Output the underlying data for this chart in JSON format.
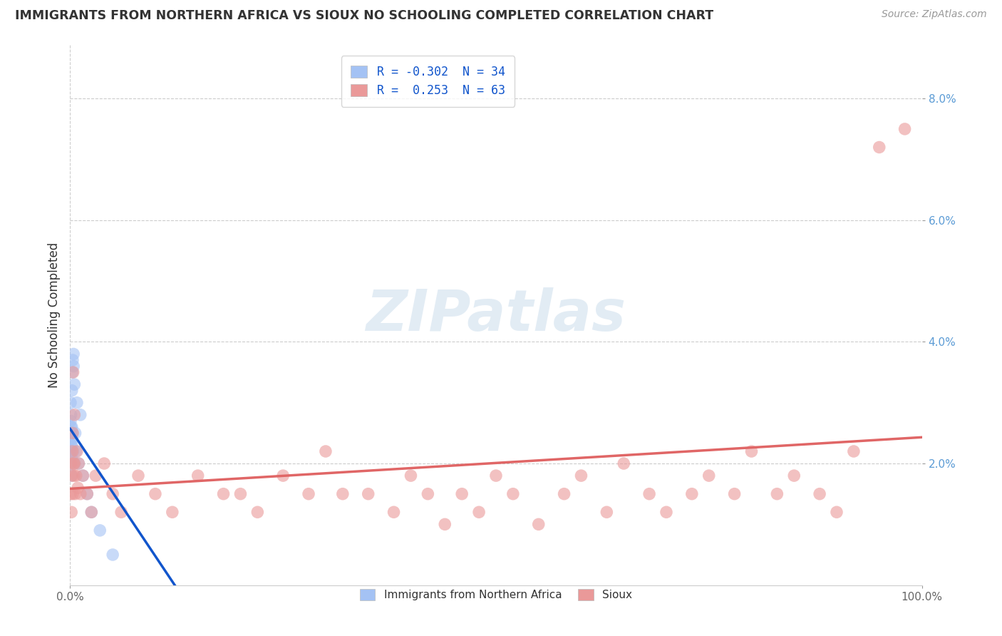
{
  "title": "IMMIGRANTS FROM NORTHERN AFRICA VS SIOUX NO SCHOOLING COMPLETED CORRELATION CHART",
  "source": "Source: ZipAtlas.com",
  "ylabel": "No Schooling Completed",
  "xlim": [
    0,
    100
  ],
  "ylim": [
    0,
    8.889
  ],
  "blue_R": -0.302,
  "blue_N": 34,
  "pink_R": 0.253,
  "pink_N": 63,
  "blue_color": "#a4c2f4",
  "pink_color": "#ea9999",
  "blue_line_color": "#1155cc",
  "pink_line_color": "#e06666",
  "legend_label_blue": "Immigrants from Northern Africa",
  "legend_label_pink": "Sioux",
  "watermark": "ZIPatlas",
  "background_color": "#ffffff",
  "grid_color": "#cccccc",
  "blue_x": [
    0.05,
    0.05,
    0.05,
    0.05,
    0.05,
    0.1,
    0.1,
    0.1,
    0.1,
    0.15,
    0.15,
    0.15,
    0.2,
    0.2,
    0.2,
    0.25,
    0.25,
    0.3,
    0.3,
    0.35,
    0.4,
    0.4,
    0.5,
    0.5,
    0.6,
    0.7,
    0.8,
    1.0,
    1.2,
    1.5,
    2.0,
    2.5,
    3.5,
    5.0
  ],
  "blue_y": [
    2.2,
    2.4,
    2.5,
    2.7,
    3.0,
    2.0,
    2.3,
    2.6,
    2.8,
    1.8,
    2.1,
    2.5,
    2.3,
    2.6,
    3.2,
    2.4,
    3.5,
    2.5,
    3.7,
    2.2,
    3.6,
    3.8,
    2.0,
    3.3,
    2.5,
    2.2,
    3.0,
    2.0,
    2.8,
    1.8,
    1.5,
    1.2,
    0.9,
    0.5
  ],
  "pink_x": [
    0.05,
    0.1,
    0.15,
    0.2,
    0.25,
    0.3,
    0.3,
    0.35,
    0.4,
    0.45,
    0.5,
    0.5,
    0.6,
    0.7,
    0.8,
    0.9,
    1.0,
    1.2,
    1.5,
    2.0,
    2.5,
    3.0,
    4.0,
    5.0,
    6.0,
    8.0,
    10.0,
    12.0,
    15.0,
    18.0,
    20.0,
    22.0,
    25.0,
    28.0,
    30.0,
    32.0,
    35.0,
    38.0,
    40.0,
    42.0,
    44.0,
    46.0,
    48.0,
    50.0,
    52.0,
    55.0,
    58.0,
    60.0,
    63.0,
    65.0,
    68.0,
    70.0,
    73.0,
    75.0,
    78.0,
    80.0,
    83.0,
    85.0,
    88.0,
    90.0,
    92.0,
    95.0,
    98.0
  ],
  "pink_y": [
    1.5,
    2.0,
    1.2,
    1.8,
    2.2,
    1.5,
    2.5,
    3.5,
    2.0,
    1.8,
    2.0,
    2.8,
    1.5,
    1.8,
    2.2,
    1.6,
    2.0,
    1.5,
    1.8,
    1.5,
    1.2,
    1.8,
    2.0,
    1.5,
    1.2,
    1.8,
    1.5,
    1.2,
    1.8,
    1.5,
    1.5,
    1.2,
    1.8,
    1.5,
    2.2,
    1.5,
    1.5,
    1.2,
    1.8,
    1.5,
    1.0,
    1.5,
    1.2,
    1.8,
    1.5,
    1.0,
    1.5,
    1.8,
    1.2,
    2.0,
    1.5,
    1.2,
    1.5,
    1.8,
    1.5,
    2.2,
    1.5,
    1.8,
    1.5,
    1.2,
    2.2,
    7.2,
    7.5
  ]
}
